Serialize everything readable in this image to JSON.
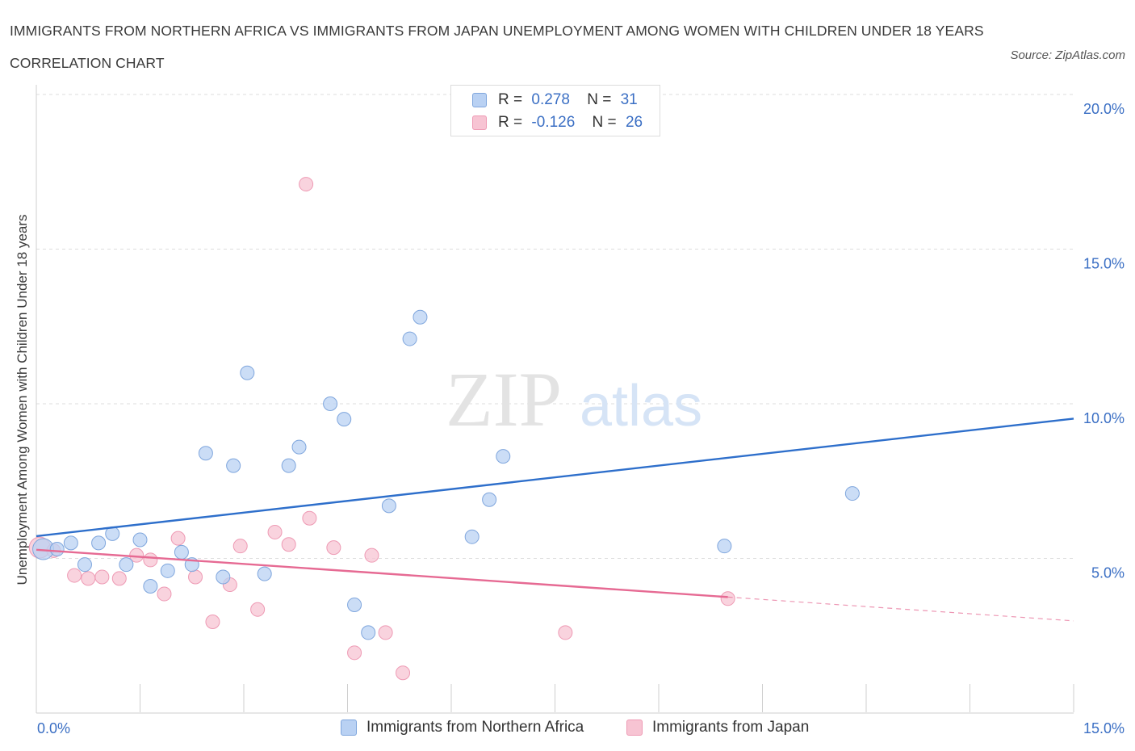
{
  "title": "IMMIGRANTS FROM NORTHERN AFRICA VS IMMIGRANTS FROM JAPAN UNEMPLOYMENT AMONG WOMEN WITH CHILDREN UNDER 18 YEARS CORRELATION CHART",
  "source": "Source: ZipAtlas.com",
  "watermark": {
    "zip": "ZIP",
    "atlas": "atlas"
  },
  "legend": {
    "rows": [
      {
        "r_label": "R =",
        "r_value": "0.278",
        "n_label": "N =",
        "n_value": "31"
      },
      {
        "r_label": "R =",
        "r_value": "-0.126",
        "n_label": "N =",
        "n_value": "26"
      }
    ]
  },
  "colors": {
    "blue_fill": "#b9d1f3",
    "blue_stroke": "#7fa6dd",
    "blue_line": "#2e6fcb",
    "pink_fill": "#f7c4d3",
    "pink_stroke": "#ee9ab4",
    "pink_line": "#e66a93",
    "tick_label": "#3b6fc4",
    "grid": "#dedede"
  },
  "chart_data": {
    "type": "scatter",
    "xlabel": "",
    "ylabel": "Unemployment Among Women with Children Under 18 years",
    "xlim": [
      0,
      15
    ],
    "ylim": [
      0,
      20
    ],
    "x_tick_labels": [
      "0.0%",
      "15.0%"
    ],
    "y_ticks": [
      5,
      10,
      15,
      20
    ],
    "y_tick_labels": [
      "5.0%",
      "10.0%",
      "15.0%",
      "20.0%"
    ],
    "grid": "horizontal dashed",
    "legend_position": "top-center and bottom",
    "series": [
      {
        "name": "Immigrants from Northern Africa",
        "color": "blue",
        "points": [
          [
            0.1,
            5.3
          ],
          [
            0.3,
            5.3
          ],
          [
            0.5,
            5.5
          ],
          [
            0.7,
            4.8
          ],
          [
            0.9,
            5.5
          ],
          [
            1.1,
            5.8
          ],
          [
            1.3,
            4.8
          ],
          [
            1.5,
            5.6
          ],
          [
            1.65,
            4.1
          ],
          [
            1.9,
            4.6
          ],
          [
            2.1,
            5.2
          ],
          [
            2.25,
            4.8
          ],
          [
            2.45,
            8.4
          ],
          [
            2.7,
            4.4
          ],
          [
            2.85,
            8.0
          ],
          [
            3.05,
            11.0
          ],
          [
            3.3,
            4.5
          ],
          [
            3.65,
            8.0
          ],
          [
            3.8,
            8.6
          ],
          [
            4.25,
            10.0
          ],
          [
            4.45,
            9.5
          ],
          [
            4.6,
            3.5
          ],
          [
            4.8,
            2.6
          ],
          [
            5.1,
            6.7
          ],
          [
            5.4,
            12.1
          ],
          [
            5.55,
            12.8
          ],
          [
            6.3,
            5.7
          ],
          [
            6.55,
            6.9
          ],
          [
            6.75,
            8.3
          ],
          [
            9.95,
            5.4
          ],
          [
            11.8,
            7.1
          ]
        ],
        "trend": {
          "x0": 0,
          "y0": 5.72,
          "x1": 15,
          "y1": 9.52
        }
      },
      {
        "name": "Immigrants from Japan",
        "color": "pink",
        "points": [
          [
            0.05,
            5.35
          ],
          [
            0.25,
            5.25
          ],
          [
            0.55,
            4.45
          ],
          [
            0.75,
            4.35
          ],
          [
            0.95,
            4.4
          ],
          [
            1.2,
            4.35
          ],
          [
            1.45,
            5.1
          ],
          [
            1.65,
            4.95
          ],
          [
            1.85,
            3.85
          ],
          [
            2.05,
            5.65
          ],
          [
            2.3,
            4.4
          ],
          [
            2.55,
            2.95
          ],
          [
            2.8,
            4.15
          ],
          [
            2.95,
            5.4
          ],
          [
            3.2,
            3.35
          ],
          [
            3.45,
            5.85
          ],
          [
            3.65,
            5.45
          ],
          [
            3.9,
            17.1
          ],
          [
            3.95,
            6.3
          ],
          [
            4.3,
            5.35
          ],
          [
            4.6,
            1.95
          ],
          [
            4.85,
            5.1
          ],
          [
            5.05,
            2.6
          ],
          [
            5.3,
            1.3
          ],
          [
            7.65,
            2.6
          ],
          [
            10.0,
            3.7
          ]
        ],
        "trend": {
          "x0": 0,
          "y0": 5.28,
          "x1": 10.0,
          "y1": 3.75,
          "dash_to_x": 15,
          "dash_to_y": 2.98
        }
      }
    ]
  }
}
